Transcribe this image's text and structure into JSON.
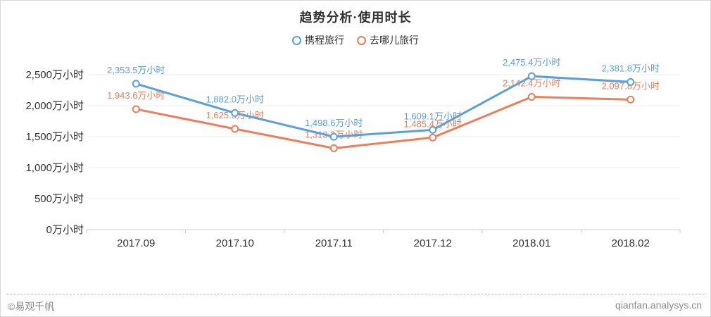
{
  "header": {
    "title": "趋势分析·使用时长"
  },
  "chart_data": {
    "type": "line",
    "title": "趋势分析·使用时长",
    "categories": [
      "2017.09",
      "2017.10",
      "2017.11",
      "2017.12",
      "2018.01",
      "2018.02"
    ],
    "series": [
      {
        "name": "携程旅行",
        "color": "#5b9fdb",
        "values": [
          2353.5,
          1882.0,
          1498.6,
          1609.1,
          2475.4,
          2381.8
        ],
        "labels": [
          "2,353.5万小时",
          "1,882.0万小时",
          "1,498.6万小时",
          "1,609.1万小时",
          "2,475.4万小时",
          "2,381.8万小时"
        ]
      },
      {
        "name": "去哪儿旅行",
        "color": "#ed7d5b",
        "values": [
          1943.6,
          1625.3,
          1313.3,
          1485.4,
          2142.4,
          2097.8
        ],
        "labels": [
          "1,943.6万小时",
          "1,625.3万小时",
          "1,313.3万小时",
          "1,485.4万小时",
          "2,142.4万小时",
          "2,097.8万小时"
        ]
      }
    ],
    "unit": "万小时",
    "ylim": [
      0,
      2500
    ],
    "ytick_step": 500,
    "ytick_labels": [
      "0万小时",
      "500万小时",
      "1,000万小时",
      "1,500万小时",
      "2,000万小时",
      "2,500万小时"
    ],
    "grid": true,
    "legend_position": "top",
    "axis_color": "#cccccc",
    "grid_color": "#eeeeee",
    "tick_label_color": "#333333"
  },
  "footer": {
    "copyright": "©易观千帆",
    "site": "qianfan.analysys.cn"
  }
}
